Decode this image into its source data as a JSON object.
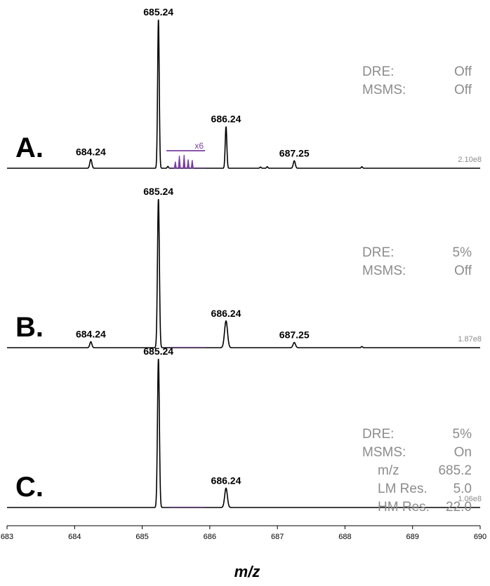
{
  "chart_data": {
    "type": "line",
    "xlabel": "m/z",
    "xlim": [
      683,
      690
    ],
    "xticks": [
      "683",
      "684",
      "685",
      "686",
      "687",
      "688",
      "689",
      "690"
    ],
    "colors": {
      "spectrum": "#000000",
      "inset": "#7a3fa0",
      "settings": "#8c8c8c"
    },
    "panels": [
      {
        "letter": "A.",
        "scale": "2.10e8",
        "settings": [
          {
            "label": "DRE:",
            "value": "Off",
            "indent": false
          },
          {
            "label": "MSMS:",
            "value": "Off",
            "indent": false
          }
        ],
        "peaks": [
          {
            "x": 684.24,
            "rel": 0.06,
            "label": "684.24",
            "width": 0.015
          },
          {
            "x": 685.24,
            "rel": 1.0,
            "label": "685.24",
            "width": 0.012
          },
          {
            "x": 686.24,
            "rel": 0.28,
            "label": "686.24",
            "width": 0.012
          },
          {
            "x": 687.25,
            "rel": 0.05,
            "label": "687.25",
            "width": 0.015
          },
          {
            "x": 685.38,
            "rel": 0.012,
            "label": "",
            "width": 0.01
          },
          {
            "x": 686.75,
            "rel": 0.008,
            "label": "",
            "width": 0.01
          },
          {
            "x": 686.85,
            "rel": 0.01,
            "label": "",
            "width": 0.01
          },
          {
            "x": 688.25,
            "rel": 0.01,
            "label": "",
            "width": 0.01
          }
        ],
        "inset": {
          "label": "x6",
          "xrange": [
            685.4,
            685.93
          ],
          "peaks": [
            {
              "x": 685.49,
              "rel": 0.045
            },
            {
              "x": 685.55,
              "rel": 0.085
            },
            {
              "x": 685.62,
              "rel": 0.09
            },
            {
              "x": 685.68,
              "rel": 0.06
            },
            {
              "x": 685.74,
              "rel": 0.055
            }
          ]
        }
      },
      {
        "letter": "B.",
        "scale": "1.87e8",
        "settings": [
          {
            "label": "DRE:",
            "value": "5%",
            "indent": false
          },
          {
            "label": "MSMS:",
            "value": "Off",
            "indent": false
          }
        ],
        "peaks": [
          {
            "x": 684.24,
            "rel": 0.04,
            "label": "684.24",
            "width": 0.015
          },
          {
            "x": 685.24,
            "rel": 1.0,
            "label": "685.24",
            "width": 0.014
          },
          {
            "x": 686.24,
            "rel": 0.18,
            "label": "686.24",
            "width": 0.022
          },
          {
            "x": 687.25,
            "rel": 0.035,
            "label": "687.25",
            "width": 0.018
          },
          {
            "x": 688.25,
            "rel": 0.008,
            "label": "",
            "width": 0.01
          }
        ],
        "inset": {
          "label": "",
          "xrange": [
            685.4,
            685.93
          ],
          "peaks": []
        }
      },
      {
        "letter": "C.",
        "scale": "1.06e8",
        "settings": [
          {
            "label": "DRE:",
            "value": "5%",
            "indent": false
          },
          {
            "label": "MSMS:",
            "value": "On",
            "indent": false
          },
          {
            "label": "m/z",
            "value": "685.2",
            "indent": true
          },
          {
            "label": "LM Res.",
            "value": "5.0",
            "indent": true
          },
          {
            "label": "HM Res.",
            "value": "22.0",
            "indent": true
          }
        ],
        "peaks": [
          {
            "x": 685.24,
            "rel": 1.0,
            "label": "685.24",
            "width": 0.014
          },
          {
            "x": 686.24,
            "rel": 0.13,
            "label": "686.24",
            "width": 0.02
          }
        ],
        "inset": {
          "label": "",
          "xrange": [
            685.4,
            685.93
          ],
          "peaks": []
        }
      }
    ]
  }
}
